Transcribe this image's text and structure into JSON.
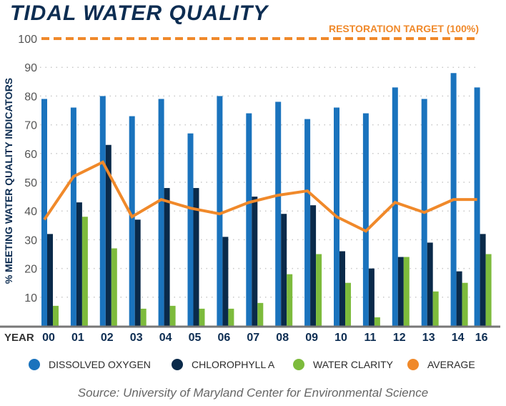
{
  "chart_data": {
    "type": "bar",
    "title": "TIDAL WATER QUALITY",
    "ylabel": "% MEETING WATER QUALITY INDICATORS",
    "xlabel": "YEAR",
    "ylim": [
      0,
      100
    ],
    "yticks": [
      10,
      20,
      30,
      40,
      50,
      60,
      70,
      80,
      90,
      100
    ],
    "grid": true,
    "categories": [
      "00",
      "01",
      "02",
      "03",
      "04",
      "05",
      "06",
      "07",
      "08",
      "09",
      "10",
      "11",
      "12",
      "13",
      "14",
      "16"
    ],
    "series": [
      {
        "name": "DISSOLVED OXYGEN",
        "kind": "bar",
        "color": "#1a73bd",
        "values": [
          79,
          76,
          80,
          73,
          79,
          67,
          80,
          74,
          78,
          72,
          76,
          74,
          83,
          79,
          88,
          83
        ]
      },
      {
        "name": "CHLOROPHYLL A",
        "kind": "bar",
        "color": "#0a2a4a",
        "values": [
          32,
          43,
          63,
          37,
          48,
          48,
          31,
          45,
          39,
          42,
          26,
          20,
          24,
          29,
          19,
          32
        ]
      },
      {
        "name": "WATER CLARITY",
        "kind": "bar",
        "color": "#7dbb3c",
        "values": [
          7,
          38,
          27,
          6,
          7,
          6,
          6,
          8,
          18,
          25,
          15,
          3,
          24,
          12,
          15,
          25
        ]
      },
      {
        "name": "AVERAGE",
        "kind": "line",
        "color": "#f0892a",
        "values": [
          37,
          52,
          57,
          38,
          44,
          41,
          39,
          43,
          45.5,
          47,
          38,
          33,
          43,
          39.5,
          44,
          44
        ]
      }
    ],
    "target": {
      "label": "RESTORATION TARGET (100%)",
      "value": 100,
      "color": "#f0892a"
    },
    "legend_position": "bottom",
    "source": "Source: University of Maryland Center for Environmental Science"
  }
}
